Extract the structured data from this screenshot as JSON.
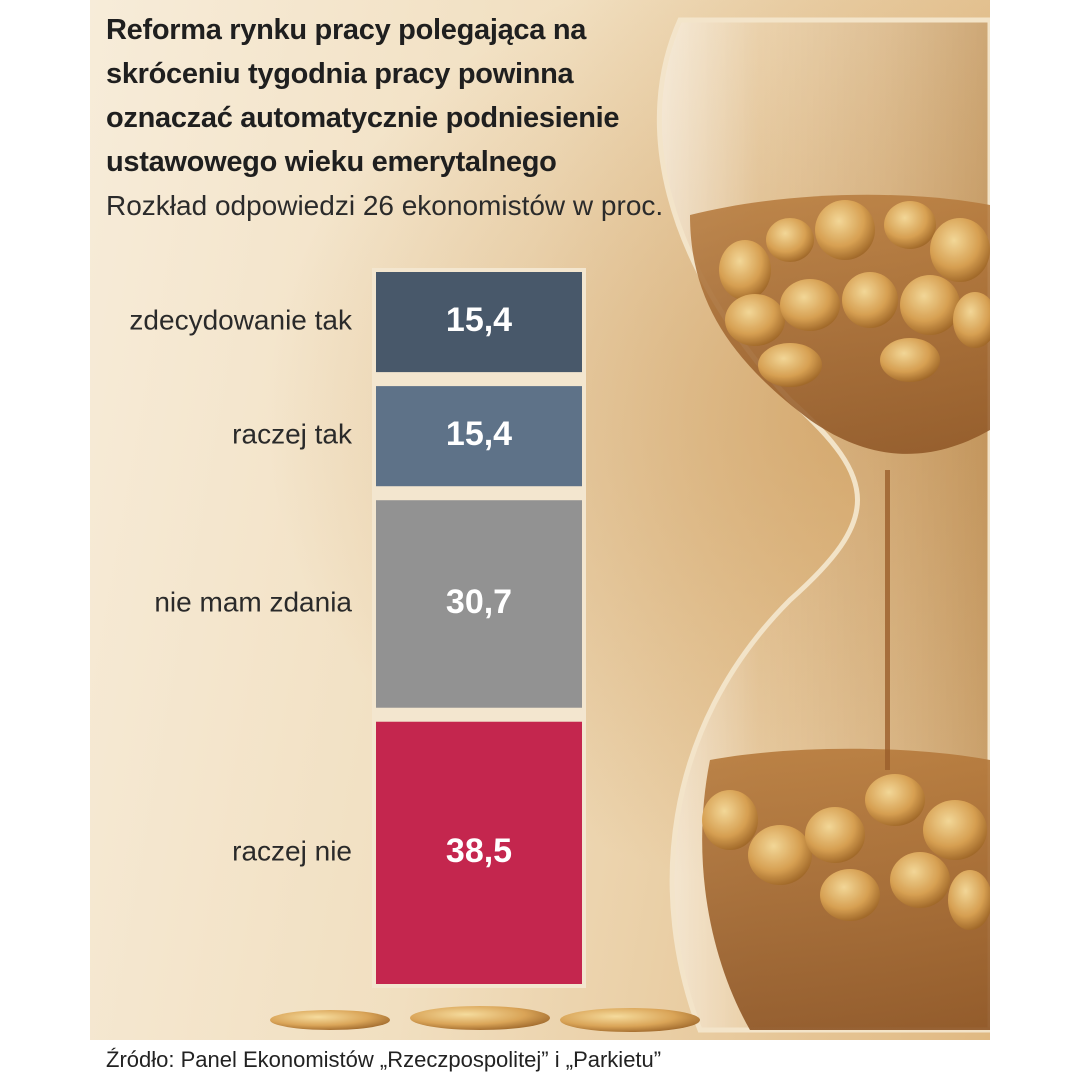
{
  "title": "Reforma rynku pracy polegająca na skróceniu tygodnia pracy powinna oznaczać automatycznie podniesienie ustawowego wieku emerytalnego",
  "subtitle": "Rozkład odpowiedzi 26 ekonomistów w proc.",
  "source": "Źródło: Panel Ekonomistów „Rzeczpospolitej” i „Parkietu”",
  "chart_data": {
    "type": "bar",
    "orientation": "stacked-vertical",
    "categories": [
      "zdecydowanie tak",
      "raczej tak",
      "nie mam zdania",
      "raczej nie"
    ],
    "values": [
      15.4,
      15.4,
      30.7,
      38.5
    ],
    "value_labels": [
      "15,4",
      "15,4",
      "30,7",
      "38,5"
    ],
    "colors": [
      "#48586a",
      "#5e7288",
      "#929292",
      "#c4264e"
    ],
    "total": 100,
    "legend": "none",
    "grid": false
  }
}
